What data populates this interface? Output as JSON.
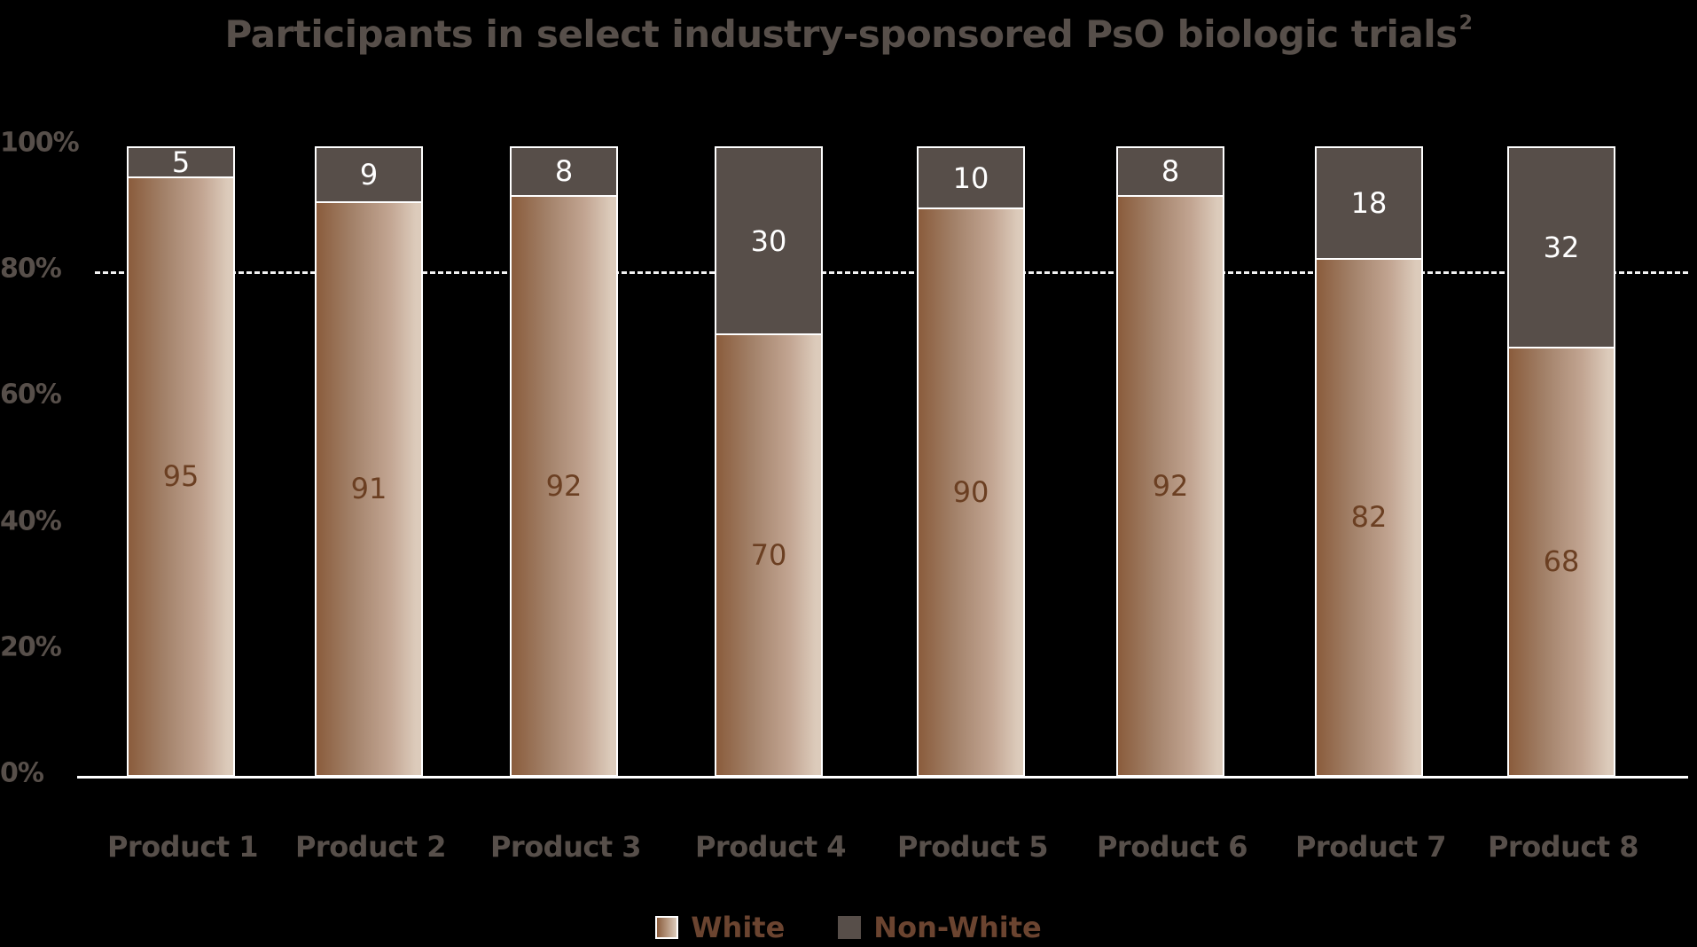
{
  "title": {
    "text": "Participants in select industry-sponsored PsO biologic trials",
    "superscript": "2"
  },
  "y_axis": {
    "ticks": [
      "100%",
      "80%",
      "60%",
      "40%",
      "20%",
      "0%"
    ]
  },
  "reference_line": {
    "value": 80,
    "style": "dashed",
    "color": "#ffffff"
  },
  "legend": {
    "items": [
      {
        "label": "White",
        "color_start": "#8a5c3c",
        "color_end": "#dccbbb"
      },
      {
        "label": "Non-White",
        "color": "#574e49"
      }
    ]
  },
  "colors": {
    "background": "#000000",
    "text_gray": "#574f4a",
    "white_segment_start": "#8a5c3c",
    "white_segment_end": "#dccbbb",
    "white_segment_label": "#6b3f22",
    "nonwhite_segment": "#574e49",
    "legend_text": "#6b4430"
  },
  "chart_data": {
    "type": "bar",
    "stacked": true,
    "title": "Participants in select industry-sponsored PsO biologic trials²",
    "xlabel": "",
    "ylabel": "",
    "ylim": [
      0,
      100
    ],
    "y_ticks": [
      "0%",
      "20%",
      "40%",
      "60%",
      "80%",
      "100%"
    ],
    "grid": false,
    "reference_lines": [
      {
        "y": 80,
        "style": "dashed"
      }
    ],
    "legend_position": "bottom",
    "categories": [
      "Product 1",
      "Product 2",
      "Product 3",
      "Product 4",
      "Product 5",
      "Product 6",
      "Product 7",
      "Product 8"
    ],
    "series": [
      {
        "name": "White",
        "values": [
          95,
          91,
          92,
          70,
          90,
          92,
          82,
          68
        ]
      },
      {
        "name": "Non-White",
        "values": [
          5,
          9,
          8,
          30,
          10,
          8,
          18,
          32
        ]
      }
    ]
  }
}
